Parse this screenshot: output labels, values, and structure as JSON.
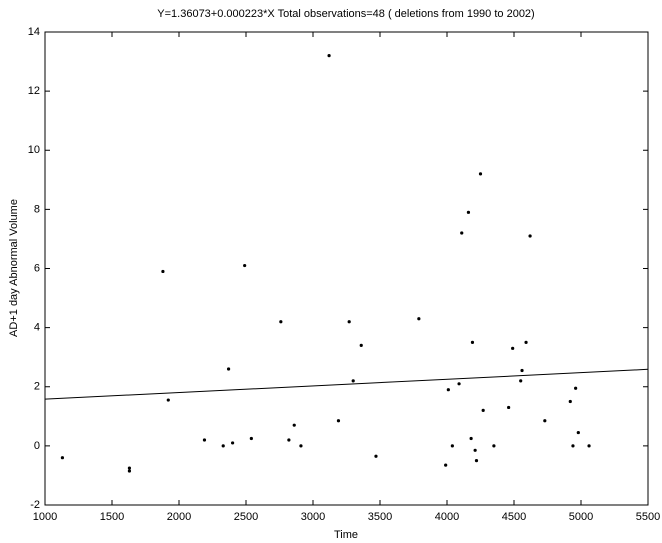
{
  "chart_data": {
    "type": "scatter",
    "title": "Y=1.36073+0.000223*X  Total observations=48 ( deletions from 1990 to 2002)",
    "xlabel": "Time",
    "ylabel": "AD+1 day Abnormal Volume",
    "x": [
      1130,
      1630,
      1630,
      1880,
      1920,
      2190,
      2330,
      2370,
      2400,
      2490,
      2540,
      2760,
      2820,
      2860,
      2910,
      3120,
      3190,
      3270,
      3300,
      3360,
      3470,
      3790,
      3990,
      4010,
      4040,
      4090,
      4110,
      4160,
      4180,
      4190,
      4210,
      4220,
      4250,
      4270,
      4350,
      4460,
      4490,
      4550,
      4560,
      4590,
      4620,
      4730,
      4920,
      4940,
      4960,
      4980,
      5060
    ],
    "values": [
      -0.4,
      -0.75,
      -0.85,
      5.9,
      1.55,
      0.2,
      0.0,
      2.6,
      0.1,
      6.1,
      0.25,
      4.2,
      0.2,
      0.7,
      0.0,
      13.2,
      0.85,
      4.2,
      2.2,
      3.4,
      -0.35,
      4.3,
      -0.65,
      1.9,
      0.0,
      2.1,
      7.2,
      7.9,
      0.25,
      3.5,
      -0.15,
      -0.5,
      9.2,
      1.2,
      0.0,
      1.3,
      3.3,
      2.2,
      2.55,
      3.5,
      7.1,
      0.85,
      1.5,
      0.0,
      1.95,
      0.45,
      0.0
    ],
    "color": "#000000",
    "fit": {
      "x": [
        1000,
        5500
      ],
      "values": [
        1.58,
        2.59
      ]
    },
    "xlim": [
      1000,
      5500
    ],
    "xticks": [
      1000,
      1500,
      2000,
      2500,
      3000,
      3500,
      4000,
      4500,
      5000,
      5500
    ],
    "ylim": [
      -2,
      14
    ],
    "yticks": [
      -2,
      0,
      2,
      4,
      6,
      8,
      10,
      12,
      14
    ],
    "grid": false
  }
}
